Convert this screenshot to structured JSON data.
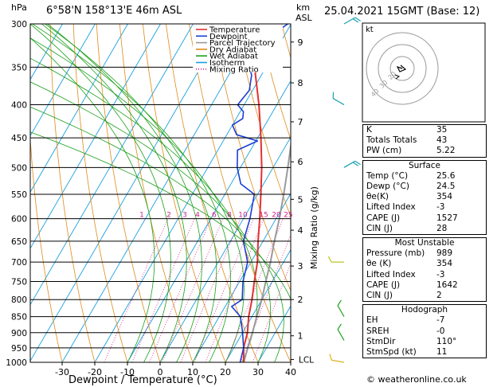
{
  "header": {
    "hpa_label": "hPa",
    "location": "6°58'N 158°13'E 46m ASL",
    "km_label": "km",
    "asl_label": "ASL",
    "datetime": "25.04.2021 15GMT (Base: 12)"
  },
  "footer": {
    "xlabel": "Dewpoint / Temperature (°C)",
    "mixing_label": "Mixing Ratio (g/kg)",
    "copyright": "© weatheronline.co.uk"
  },
  "legend": [
    {
      "label": "Temperature",
      "color": "#e53030",
      "style": "solid"
    },
    {
      "label": "Dewpoint",
      "color": "#1a3fd6",
      "style": "solid"
    },
    {
      "label": "Parcel Trajectory",
      "color": "#9a9a9a",
      "style": "solid"
    },
    {
      "label": "Dry Adiabat",
      "color": "#e08a1a",
      "style": "solid"
    },
    {
      "label": "Wet Adiabat",
      "color": "#1aa01a",
      "style": "solid"
    },
    {
      "label": "Isotherm",
      "color": "#1aa0e0",
      "style": "solid"
    },
    {
      "label": "Mixing Ratio",
      "color": "#d0208a",
      "style": "dotted"
    }
  ],
  "hodograph": {
    "label": "kt",
    "rings": [
      "40",
      "30",
      "20"
    ]
  },
  "indices": {
    "basic": [
      {
        "label": "K",
        "value": "35"
      },
      {
        "label": "Totals Totals",
        "value": "43"
      },
      {
        "label": "PW (cm)",
        "value": "5.22"
      }
    ],
    "surface": {
      "title": "Surface",
      "rows": [
        {
          "label": "Temp (°C)",
          "value": "25.6"
        },
        {
          "label": "Dewp (°C)",
          "value": "24.5"
        },
        {
          "label": "θe(K)",
          "value": "354"
        },
        {
          "label": "Lifted Index",
          "value": "-3"
        },
        {
          "label": "CAPE (J)",
          "value": "1527"
        },
        {
          "label": "CIN (J)",
          "value": "28"
        }
      ]
    },
    "most_unstable": {
      "title": "Most Unstable",
      "rows": [
        {
          "label": "Pressure (mb)",
          "value": "989"
        },
        {
          "label": "θe (K)",
          "value": "354"
        },
        {
          "label": "Lifted Index",
          "value": "-3"
        },
        {
          "label": "CAPE (J)",
          "value": "1642"
        },
        {
          "label": "CIN (J)",
          "value": "2"
        }
      ]
    },
    "hodograph": {
      "title": "Hodograph",
      "rows": [
        {
          "label": "EH",
          "value": "-7"
        },
        {
          "label": "SREH",
          "value": "-0"
        },
        {
          "label": "StmDir",
          "value": "110°"
        },
        {
          "label": "StmSpd (kt)",
          "value": "11"
        }
      ]
    }
  },
  "chart_data": {
    "type": "line",
    "xlabel": "Dewpoint / Temperature (°C)",
    "ylabel": "hPa",
    "y_scale": "log",
    "ylim": [
      1000,
      300
    ],
    "xlim": [
      -35,
      40
    ],
    "pressure_ticks": [
      300,
      350,
      400,
      450,
      500,
      550,
      600,
      650,
      700,
      750,
      800,
      850,
      900,
      950,
      1000
    ],
    "temp_ticks": [
      -30,
      -20,
      -10,
      0,
      10,
      20,
      30,
      40
    ],
    "km_ticks": [
      {
        "km": "1",
        "p": 910
      },
      {
        "km": "2",
        "p": 800
      },
      {
        "km": "3",
        "p": 710
      },
      {
        "km": "4",
        "p": 625
      },
      {
        "km": "5",
        "p": 560
      },
      {
        "km": "6",
        "p": 490
      },
      {
        "km": "7",
        "p": 425
      },
      {
        "km": "8",
        "p": 370
      },
      {
        "km": "9",
        "p": 320
      }
    ],
    "lcl": {
      "label": "LCL",
      "p": 990
    },
    "mixing_ratio_labels": [
      "1",
      "2",
      "3",
      "4",
      "6",
      "8",
      "10",
      "15",
      "20",
      "25"
    ],
    "series": [
      {
        "name": "Temperature",
        "points": [
          [
            1000,
            25.6
          ],
          [
            950,
            23
          ],
          [
            900,
            21.5
          ],
          [
            850,
            19
          ],
          [
            800,
            17
          ],
          [
            750,
            14.5
          ],
          [
            700,
            12
          ],
          [
            650,
            8.5
          ],
          [
            600,
            5
          ],
          [
            550,
            1
          ],
          [
            500,
            -3.5
          ],
          [
            450,
            -9
          ],
          [
            400,
            -15.5
          ],
          [
            350,
            -23.5
          ],
          [
            330,
            -27
          ]
        ]
      },
      {
        "name": "Dewpoint",
        "points": [
          [
            1000,
            24.5
          ],
          [
            950,
            23
          ],
          [
            900,
            20
          ],
          [
            850,
            16.5
          ],
          [
            820,
            12
          ],
          [
            800,
            14
          ],
          [
            750,
            11
          ],
          [
            700,
            9
          ],
          [
            650,
            4
          ],
          [
            600,
            2
          ],
          [
            550,
            -1
          ],
          [
            530,
            -7
          ],
          [
            500,
            -11
          ],
          [
            470,
            -14
          ],
          [
            455,
            -9.5
          ],
          [
            445,
            -17
          ],
          [
            430,
            -20
          ],
          [
            420,
            -18
          ],
          [
            410,
            -19
          ],
          [
            400,
            -22
          ],
          [
            380,
            -21
          ],
          [
            360,
            -23
          ],
          [
            350,
            -25
          ],
          [
            330,
            -38
          ],
          [
            320,
            -26
          ],
          [
            300,
            -21
          ]
        ]
      },
      {
        "name": "Parcel Trajectory",
        "points": [
          [
            1000,
            25.6
          ],
          [
            950,
            24.3
          ],
          [
            900,
            23
          ],
          [
            850,
            21.5
          ],
          [
            800,
            20
          ],
          [
            750,
            18
          ],
          [
            700,
            16
          ],
          [
            650,
            13.5
          ],
          [
            600,
            11
          ],
          [
            550,
            8
          ],
          [
            500,
            4.5
          ],
          [
            450,
            0.5
          ],
          [
            400,
            -4.5
          ],
          [
            350,
            -11
          ],
          [
            330,
            -14
          ]
        ]
      }
    ],
    "wind_barbs": [
      {
        "p": 300,
        "dir": 60,
        "spd": 20
      },
      {
        "p": 400,
        "dir": 300,
        "spd": 10
      },
      {
        "p": 500,
        "dir": 60,
        "spd": 15
      },
      {
        "p": 700,
        "dir": 270,
        "spd": 5
      },
      {
        "p": 850,
        "dir": 330,
        "spd": 10
      },
      {
        "p": 925,
        "dir": 330,
        "spd": 10
      },
      {
        "p": 1000,
        "dir": 280,
        "spd": 5
      }
    ]
  }
}
